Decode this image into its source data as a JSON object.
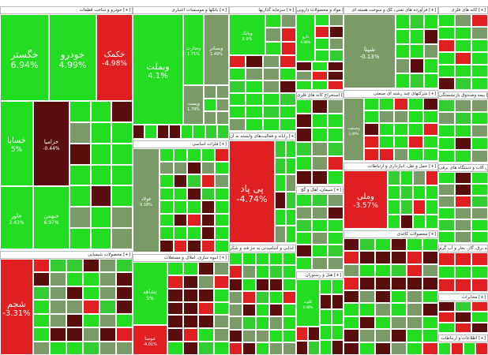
{
  "chart_data": {
    "type": "heatmap",
    "colors": {
      "up": "#22dd22",
      "up_strong": "#33cc33",
      "flat": "#7a9b68",
      "down": "#e02020",
      "down_dark": "#5a0e0e"
    },
    "sectors": [
      {
        "name": "خودرو و ساخت قطعات [+]",
        "tiles": [
          {
            "name": "خگستر",
            "value": "6.94%",
            "change": 6.94
          },
          {
            "name": "خودرو",
            "value": "4.99%",
            "change": 4.99
          },
          {
            "name": "خکمک",
            "value": "-4.98%",
            "change": -4.98
          },
          {
            "name": "خساپا",
            "value": "5%",
            "change": 5
          },
          {
            "name": "خزامیا",
            "value": "-0.44%",
            "change": -0.44
          },
          {
            "name": "خاور",
            "value": "2.43%",
            "change": 2.43
          },
          {
            "name": "خبهمن",
            "value": "6.97%",
            "change": 6.97
          }
        ]
      },
      {
        "name": "بانکها و موسسات اعتباری [+]",
        "tiles": [
          {
            "name": "وبملت",
            "value": "4.1%",
            "change": 4.1
          },
          {
            "name": "وتجارت",
            "value": "1.71%",
            "change": 1.71
          },
          {
            "name": "وبصادر",
            "value": "1.49%",
            "change": 1.49
          },
          {
            "name": "وپست",
            "value": "1.79%",
            "change": 1.79
          }
        ]
      },
      {
        "name": "سرمایه گذاریها [+]",
        "tiles": [
          {
            "name": "وبانک",
            "value": "6.9%",
            "change": 6.9
          }
        ]
      },
      {
        "name": "مواد و محصولات دارویی [+]",
        "tiles": [
          {
            "name": "دارو",
            "value": "6.98%",
            "change": 6.98
          }
        ]
      },
      {
        "name": "فرآورده های نفتی، کک و سوخت هسته ای [+]",
        "tiles": [
          {
            "name": "شپنا",
            "value": "-0.13%",
            "change": -0.13
          }
        ]
      },
      {
        "name": "پی پاد",
        "value": "-4.74%",
        "change": -4.74
      },
      {
        "name": "وملی",
        "value": "-3.57%",
        "change": -3.57
      },
      {
        "name": "محصولات شیمیایی [+]",
        "tiles": [
          {
            "name": "شجم",
            "value": "-3.31%",
            "change": -3.31
          }
        ]
      },
      {
        "name": "انبوه سازی، املاک و مستغلات [+]",
        "tiles": [
          {
            "name": "ثشاهد",
            "value": "5%",
            "change": 5
          },
          {
            "name": "ثنوسا",
            "value": "-4.01%",
            "change": -4.01
          }
        ]
      },
      {
        "name": "فلزات اساسی [+]",
        "tiles": [
          {
            "name": "فولاد",
            "value": "0.18%",
            "change": 0.18
          }
        ]
      },
      {
        "name": "رایانه و فعالیت‌های وابسته به آن [+]",
        "tiles": []
      },
      {
        "name": "کاشی و سرامیک [+]",
        "tiles": [
          {
            "name": "کلوند",
            "value": "0.08%",
            "change": 0.08
          }
        ]
      },
      {
        "name": "شرکتهای چند رشته ای صنعتی [+]",
        "tiles": [
          {
            "name": "وصنعت",
            "value": "1.49%",
            "change": 1.49
          }
        ]
      }
    ],
    "headers": {
      "h1": "خودرو و ساخت قطعات [+]",
      "h2": "بانکها و موسسات اعتباری [+]",
      "h3": "سرمایه گذاریها [+]",
      "h4": "مواد و محصولات دارویی [+]",
      "h5": "فرآورده های نفتی، کک و سوخت هسته ای [+]",
      "h6": "کانه های فلزی [+]",
      "h7": "فلزات اساسی [+]",
      "h8": "رایانه و فعالیت‌های وابسته به آن [+]",
      "h9": "استخراج کانه های فلزی [+]",
      "h10": "شرکتهای چند رشته ای صنعتی [+]",
      "h11": "محصولات شیمیایی [+]",
      "h12": "انبوه سازی، املاک و مستغلات [+]",
      "h13": "سیمان، آهک و گچ [+]",
      "h14": "هتل و رستوران [+]",
      "h15": "محصولات غذایی و آشامیدنی به جز قند و شکر [+]",
      "h16": "محصولات کاغذی [+]",
      "h17": "حمل و نقل، انبارداری و ارتباطات [+]",
      "h18": "بیمه وصندوق بازنشستگی [+]",
      "h19": "ماشین آلات و دستگاه های برقی [+]",
      "h20": "عرضه برق، گاز، بخار و آب گرم [+]",
      "h21": "مخابرات [+]",
      "h22": "اطلاعات و ارتباطات [+]"
    }
  }
}
